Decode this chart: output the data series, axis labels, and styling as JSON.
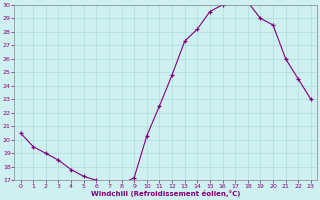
{
  "x": [
    0,
    1,
    2,
    3,
    4,
    5,
    6,
    7,
    8,
    9,
    10,
    11,
    12,
    13,
    14,
    15,
    16,
    17,
    18,
    19,
    20,
    21,
    22,
    23
  ],
  "y": [
    20.5,
    19.5,
    19.0,
    18.5,
    17.8,
    17.3,
    17.0,
    16.7,
    16.7,
    17.2,
    20.3,
    22.5,
    24.8,
    27.3,
    28.2,
    29.5,
    30.0,
    30.5,
    30.2,
    29.0,
    28.5,
    26.0,
    24.5,
    23.0
  ],
  "ylim": [
    17,
    30
  ],
  "xlim": [
    -0.5,
    23.5
  ],
  "yticks": [
    17,
    18,
    19,
    20,
    21,
    22,
    23,
    24,
    25,
    26,
    27,
    28,
    29,
    30
  ],
  "xticks": [
    0,
    1,
    2,
    3,
    4,
    5,
    6,
    7,
    8,
    9,
    10,
    11,
    12,
    13,
    14,
    15,
    16,
    17,
    18,
    19,
    20,
    21,
    22,
    23
  ],
  "xlabel": "Windchill (Refroidissement éolien,°C)",
  "line_color": "#800080",
  "marker": "+",
  "bg_color": "#cff0f0",
  "grid_color": "#aadddd",
  "axis_label_color": "#800080",
  "tick_label_color": "#800080",
  "spine_color": "#888888"
}
